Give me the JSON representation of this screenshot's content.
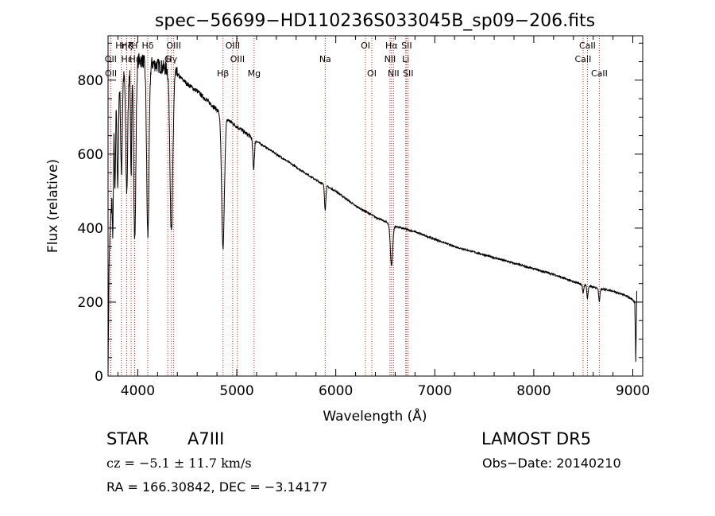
{
  "chart_data": {
    "type": "line",
    "title": "spec−56699−HD110236S033045B_sp09−206.fits",
    "xlabel": "Wavelength (Å)",
    "ylabel": "Flux (relative)",
    "xlim": [
      3700,
      9100
    ],
    "ylim": [
      0,
      920
    ],
    "x_ticks": [
      4000,
      5000,
      6000,
      7000,
      8000,
      9000
    ],
    "y_ticks": [
      0,
      200,
      400,
      600,
      800
    ],
    "x_tick_labels": [
      "4000",
      "5000",
      "6000",
      "7000",
      "8000",
      "9000"
    ],
    "y_tick_labels": [
      "0",
      "200",
      "400",
      "600",
      "800"
    ],
    "grid": false,
    "line_color": "#000000",
    "marker_line_color": "#cc2222",
    "spectrum_control_points": [
      [
        3700,
        0
      ],
      [
        3712,
        330
      ],
      [
        3735,
        470
      ],
      [
        3755,
        800
      ],
      [
        3790,
        780
      ],
      [
        3820,
        800
      ],
      [
        3850,
        810
      ],
      [
        3890,
        830
      ],
      [
        3940,
        845
      ],
      [
        4000,
        855
      ],
      [
        4100,
        850
      ],
      [
        4200,
        840
      ],
      [
        4300,
        830
      ],
      [
        4400,
        815
      ],
      [
        4500,
        790
      ],
      [
        4600,
        770
      ],
      [
        4700,
        745
      ],
      [
        4800,
        720
      ],
      [
        4900,
        695
      ],
      [
        5000,
        675
      ],
      [
        5100,
        655
      ],
      [
        5200,
        635
      ],
      [
        5400,
        600
      ],
      [
        5600,
        565
      ],
      [
        5800,
        530
      ],
      [
        6000,
        500
      ],
      [
        6200,
        460
      ],
      [
        6400,
        430
      ],
      [
        6600,
        405
      ],
      [
        6800,
        390
      ],
      [
        7000,
        370
      ],
      [
        7200,
        350
      ],
      [
        7400,
        335
      ],
      [
        7600,
        320
      ],
      [
        7800,
        305
      ],
      [
        8000,
        290
      ],
      [
        8200,
        275
      ],
      [
        8400,
        255
      ],
      [
        8600,
        240
      ],
      [
        8800,
        230
      ],
      [
        8950,
        215
      ],
      [
        9000,
        205
      ],
      [
        9020,
        200
      ],
      [
        9030,
        40
      ],
      [
        9040,
        230
      ]
    ],
    "absorption_lines": [
      {
        "center": 3750,
        "depth": 330,
        "width": 6
      },
      {
        "center": 3770,
        "depth": 300,
        "width": 6
      },
      {
        "center": 3798,
        "depth": 280,
        "width": 7
      },
      {
        "center": 3835,
        "depth": 260,
        "width": 8
      },
      {
        "center": 3889,
        "depth": 330,
        "width": 10
      },
      {
        "center": 3933,
        "depth": 300,
        "width": 6
      },
      {
        "center": 3970,
        "depth": 480,
        "width": 11
      },
      {
        "center": 4102,
        "depth": 470,
        "width": 12
      },
      {
        "center": 4340,
        "depth": 440,
        "width": 14
      },
      {
        "center": 4861,
        "depth": 360,
        "width": 14
      },
      {
        "center": 5170,
        "depth": 80,
        "width": 8
      },
      {
        "center": 5893,
        "depth": 65,
        "width": 7
      },
      {
        "center": 6563,
        "depth": 110,
        "width": 12
      },
      {
        "center": 8498,
        "depth": 25,
        "width": 6
      },
      {
        "center": 8542,
        "depth": 35,
        "width": 6
      },
      {
        "center": 8662,
        "depth": 35,
        "width": 6
      }
    ],
    "line_markers": [
      {
        "x": 3727,
        "label": "OII",
        "row": 1
      },
      {
        "x": 3729,
        "label": "OII",
        "row": 2
      },
      {
        "x": 3835,
        "label": "Hη",
        "row": 0
      },
      {
        "x": 3889,
        "label": "Hζ",
        "row": 0
      },
      {
        "x": 3889,
        "label": "Hε",
        "row": 1
      },
      {
        "x": 3933,
        "label": "K",
        "row": 0
      },
      {
        "x": 3968,
        "label": "H",
        "row": 0
      },
      {
        "x": 3970,
        "label": "Hε",
        "row": 1
      },
      {
        "x": 4101,
        "label": "Hδ",
        "row": 0
      },
      {
        "x": 4304,
        "label": "G",
        "row": 1
      },
      {
        "x": 4340,
        "label": "Hγ",
        "row": 1
      },
      {
        "x": 4363,
        "label": "OIII",
        "row": 0
      },
      {
        "x": 4861,
        "label": "Hβ",
        "row": 2
      },
      {
        "x": 4959,
        "label": "OIII",
        "row": 0
      },
      {
        "x": 5007,
        "label": "OIII",
        "row": 1
      },
      {
        "x": 5175,
        "label": "Mg",
        "row": 2
      },
      {
        "x": 5893,
        "label": "Na",
        "row": 1
      },
      {
        "x": 6300,
        "label": "OI",
        "row": 0
      },
      {
        "x": 6364,
        "label": "OI",
        "row": 2
      },
      {
        "x": 6548,
        "label": "NII",
        "row": 1
      },
      {
        "x": 6563,
        "label": "Hα",
        "row": 0
      },
      {
        "x": 6583,
        "label": "NII",
        "row": 2
      },
      {
        "x": 6707,
        "label": "Li",
        "row": 1
      },
      {
        "x": 6716,
        "label": "SII",
        "row": 0
      },
      {
        "x": 6731,
        "label": "SII",
        "row": 2
      },
      {
        "x": 8498,
        "label": "CaII",
        "row": 1
      },
      {
        "x": 8542,
        "label": "CaII",
        "row": 0
      },
      {
        "x": 8662,
        "label": "CaII",
        "row": 2
      }
    ]
  },
  "footer": {
    "object_type": "STAR",
    "subclass": "A7III",
    "survey": "LAMOST  DR5",
    "cz": "cz = −5.1 ± 11.7 km/s",
    "obs_date": "Obs−Date: 20140210",
    "coords": "RA = 166.30842, DEC =  −3.14177"
  }
}
